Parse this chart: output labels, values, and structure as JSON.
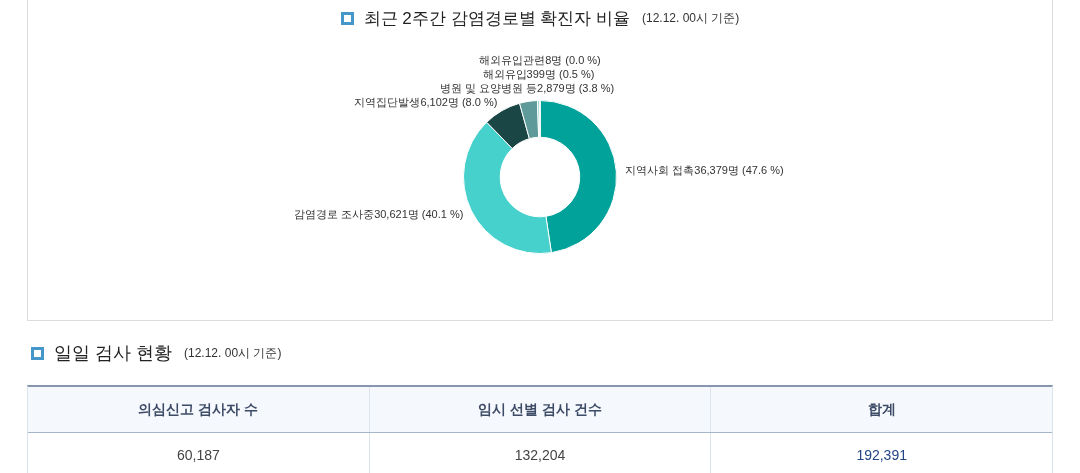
{
  "chart_data": [
    {
      "type": "donut",
      "title": "최근 2주간 감염경로별 확진자 비율",
      "subtitle": "(12.12. 00시 기준)",
      "categories": [
        "지역사회 접촉",
        "감염경로 조사중",
        "지역집단발생",
        "병원 및 요양병원 등",
        "해외유입",
        "해외유입관련"
      ],
      "values": [
        36379,
        30621,
        6102,
        2879,
        399,
        8
      ],
      "colors": [
        "#00a29a",
        "#47d1cc",
        "#1b4646",
        "#5e9a9a",
        "#9fd8d5",
        "#c8c8c8"
      ],
      "value_labels": [
        "36,379명 (47.6 %)",
        "30,621명 (40.1 %)",
        "6,102명 (8.0 %)",
        "2,879명 (3.8 %)",
        "399명 (0.5 %)",
        "8명 (0.0 %)"
      ]
    },
    {
      "type": "other",
      "title": "일일 검사 현황",
      "subtitle": "(12.12. 00시 기준)",
      "categories": [
        "의심신고 검사자 수",
        "임시 선별 검사 건수",
        "합계"
      ],
      "values": [
        60187,
        132204,
        192391
      ],
      "value_labels": [
        "60,187",
        "132,204",
        "192,391"
      ]
    }
  ]
}
